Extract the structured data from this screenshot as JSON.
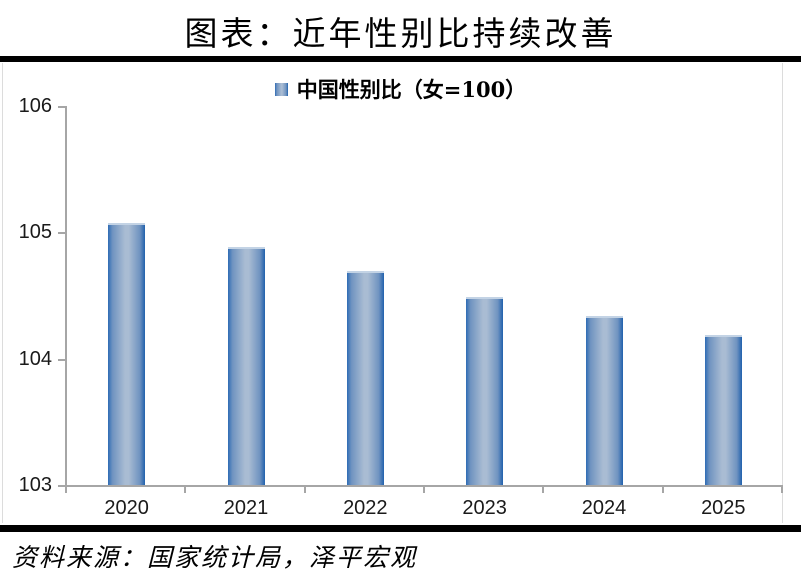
{
  "title": "图表：近年性别比持续改善",
  "legend": {
    "label": "中国性别比（女=100）"
  },
  "source": "资料来源：国家统计局，泽平宏观",
  "colors": {
    "bar_edge": "#2e6cb5",
    "bar_edge_dark": "#2161ad",
    "bar_mid": "#6f93c0",
    "bar_center": "#a9bcd3",
    "bar_top_highlight": "#c3d3e5",
    "axis": "#a6a6a6",
    "frame": "#dcdcdc",
    "divider": "#000000",
    "text": "#000000"
  },
  "chart_data": {
    "type": "bar",
    "categories": [
      "2020",
      "2021",
      "2022",
      "2023",
      "2024",
      "2025"
    ],
    "values": [
      105.07,
      104.88,
      104.69,
      104.49,
      104.34,
      104.19
    ],
    "series_name": "中国性别比（女=100）",
    "title": "图表：近年性别比持续改善",
    "xlabel": "",
    "ylabel": "",
    "ylim": [
      103,
      106
    ],
    "yticks": [
      103,
      104,
      105,
      106
    ],
    "grid": false,
    "legend_position": "top-center",
    "bar_style": "horizontal blue cylinder gradient, dark edges with light center"
  }
}
